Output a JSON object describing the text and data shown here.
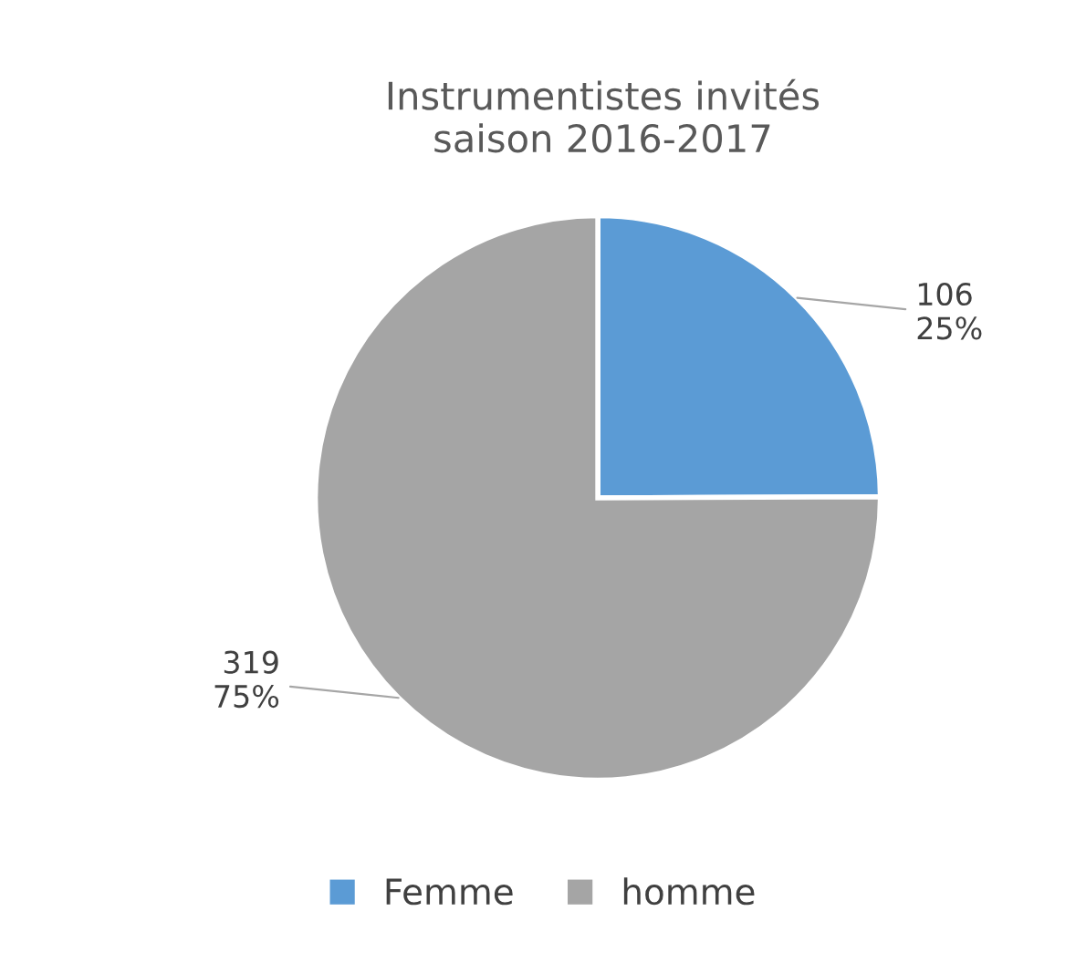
{
  "chart_data": {
    "type": "pie",
    "title": "Instrumentistes invités\nsaison 2016-2017",
    "categories": [
      "Femme",
      "homme"
    ],
    "values": [
      106,
      319
    ],
    "colors": [
      "#5b9bd5",
      "#a5a5a5"
    ],
    "value_labels": [
      "106\n25%",
      "319\n75%"
    ],
    "legend": "bottom"
  }
}
